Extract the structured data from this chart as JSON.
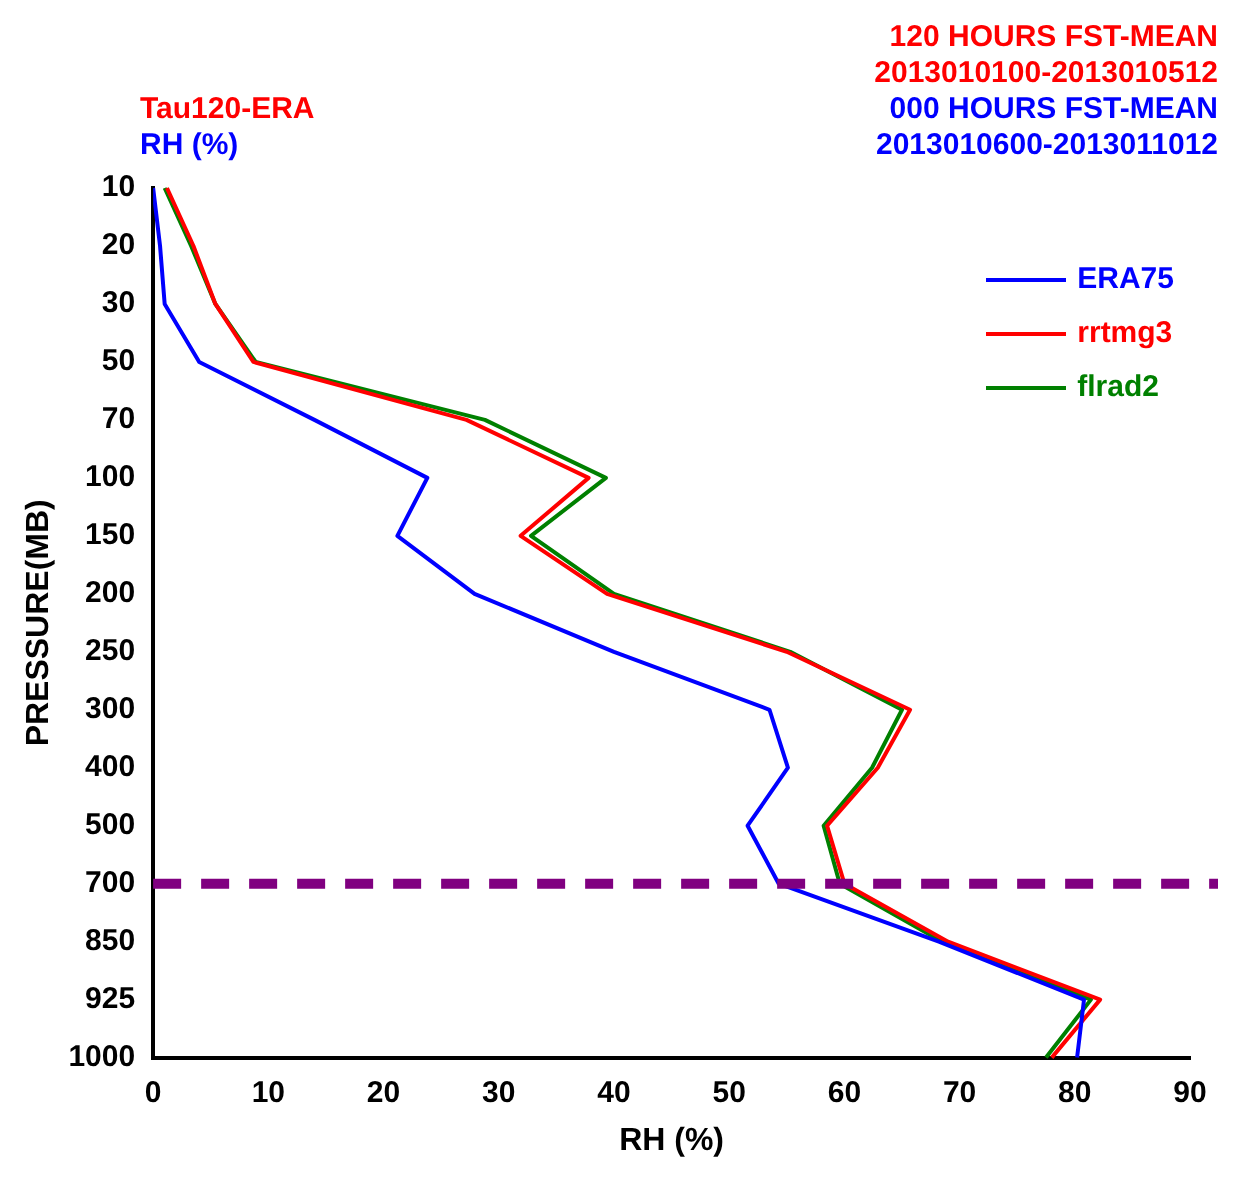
{
  "chart_data": {
    "type": "line",
    "orientation": "horizontal",
    "title": "Tau120-ERA",
    "subtitle": "RH (%)",
    "annotations": [
      "120 HOURS FST-MEAN",
      "2013010100-2013010512",
      "000 HOURS FST-MEAN",
      "2013010600-2013011012"
    ],
    "xlabel": "RH (%)",
    "ylabel": "PRESSURE(MB)",
    "categories": [
      "10",
      "20",
      "30",
      "50",
      "70",
      "100",
      "150",
      "200",
      "250",
      "300",
      "400",
      "500",
      "700",
      "850",
      "925",
      "1000"
    ],
    "series": [
      {
        "name": "ERA75",
        "color": "#0000ff",
        "values": [
          0,
          0.6,
          1,
          4,
          14,
          23.8,
          21.2,
          27.9,
          40,
          53.5,
          55.1,
          51.6,
          54.3,
          68.2,
          80.8,
          80.2
        ]
      },
      {
        "name": "rrtmg3",
        "color": "#ff0000",
        "values": [
          1.2,
          3.5,
          5.4,
          8.7,
          27.2,
          37.8,
          31.9,
          39.4,
          55,
          65.7,
          62.9,
          58.5,
          60,
          69,
          82.2,
          78
        ]
      },
      {
        "name": "flrad2",
        "color": "#008000",
        "values": [
          1,
          3.3,
          5.4,
          8.9,
          28.8,
          39.3,
          32.8,
          40,
          55.3,
          65,
          62.4,
          58.2,
          59.6,
          68.5,
          81.4,
          77.5
        ]
      }
    ],
    "xlim": [
      0,
      90
    ],
    "xticks": [
      0,
      10,
      20,
      30,
      40,
      50,
      60,
      70,
      80,
      90
    ],
    "ref_lines": [
      {
        "axis": "y",
        "value": "700",
        "color": "#800080",
        "line_style": "dashed"
      }
    ],
    "grid": false,
    "legend": "top right",
    "marker": "none",
    "line_style": "solid"
  }
}
